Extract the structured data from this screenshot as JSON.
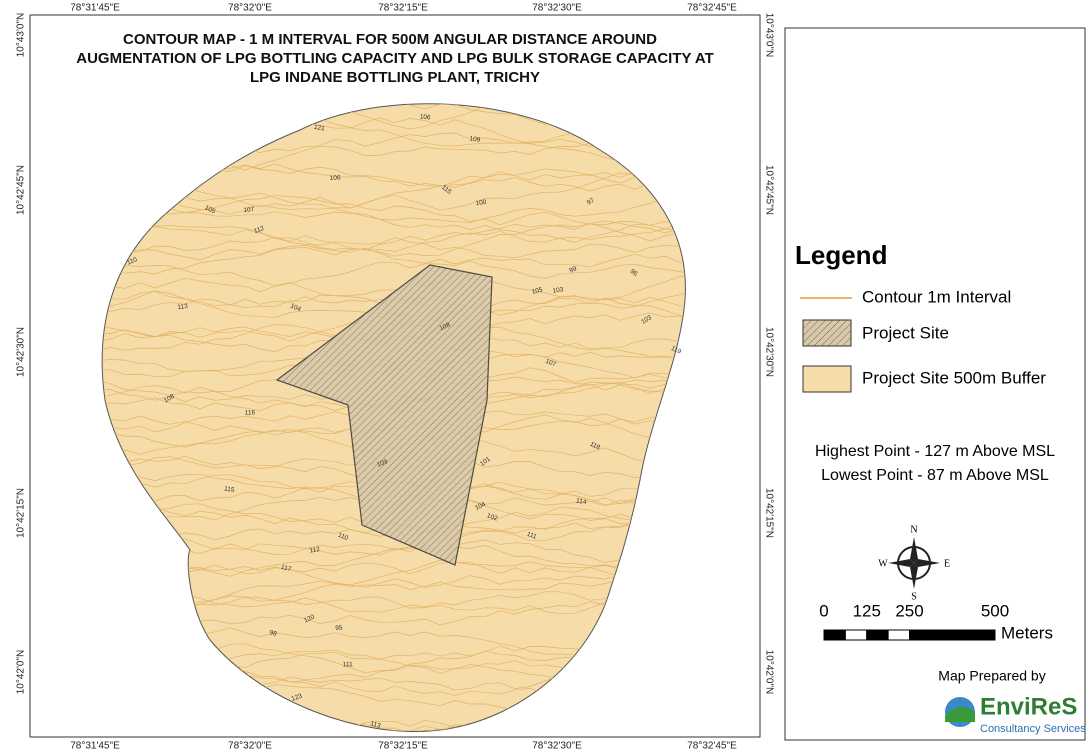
{
  "title": [
    "CONTOUR MAP - 1 M INTERVAL FOR 500M ANGULAR DISTANCE AROUND",
    "AUGMENTATION OF LPG BOTTLING CAPACITY AND LPG BULK STORAGE CAPACITY AT",
    "LPG INDANE BOTTLING PLANT, TRICHY"
  ],
  "longitudes": [
    "78°31'45\"E",
    "78°32'0\"E",
    "78°32'15\"E",
    "78°32'30\"E",
    "78°32'45\"E"
  ],
  "latitudes": [
    "10°43'0\"N",
    "10°42'45\"N",
    "10°42'30\"N",
    "10°42'15\"N",
    "10°42'0\"N"
  ],
  "legend": {
    "title": "Legend",
    "items": [
      "Contour 1m Interval",
      "Project Site",
      "Project Site 500m Buffer"
    ]
  },
  "elevation_notes": [
    "Highest Point - 127 m Above MSL",
    "Lowest Point - 87 m Above MSL"
  ],
  "compass": [
    "N",
    "S",
    "E",
    "W"
  ],
  "scale_bar": {
    "labels": [
      0,
      125,
      250,
      500
    ],
    "unit": "Meters"
  },
  "credit": {
    "label": "Map Prepared by",
    "logo": "EnviReS",
    "tagline": "Consultancy Services"
  },
  "contour_labels": [
    103,
    98,
    105,
    107,
    111,
    112,
    99,
    104,
    108,
    110,
    113,
    121,
    117,
    106,
    109,
    101,
    95,
    114,
    119,
    123,
    115,
    116,
    102,
    100,
    97,
    118,
    120,
    96,
    112,
    107,
    105,
    110,
    104,
    109,
    111,
    106,
    108,
    113,
    103,
    115
  ]
}
